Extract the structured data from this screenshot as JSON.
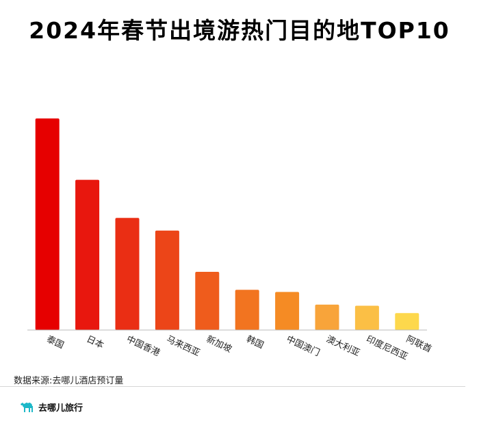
{
  "page": {
    "title": "2024年春节出境游热门目的地TOP10",
    "source": "数据来源:去哪儿酒店预订量",
    "brand": "去哪儿旅行",
    "brand_icon": "camel-logo-icon",
    "brand_color": "#1db8c8"
  },
  "chart_data": {
    "type": "bar",
    "title": "2024年春节出境游热门目的地TOP10",
    "xlabel": "",
    "ylabel": "",
    "categories": [
      "泰国",
      "日本",
      "中国香港",
      "马来西亚",
      "新加坡",
      "韩国",
      "中国澳门",
      "澳大利亚",
      "印度尼西亚",
      "阿联酋"
    ],
    "values": [
      100,
      71,
      53,
      47,
      27.5,
      19,
      18,
      12,
      11.5,
      8
    ],
    "ylim": [
      0,
      100
    ],
    "grid": false,
    "legend": "none",
    "colors": [
      "#e60000",
      "#e8170e",
      "#ea2e14",
      "#ec4518",
      "#ef5c1c",
      "#f27420",
      "#f58b24",
      "#f8a43a",
      "#fbbf45",
      "#fdd84c"
    ]
  }
}
